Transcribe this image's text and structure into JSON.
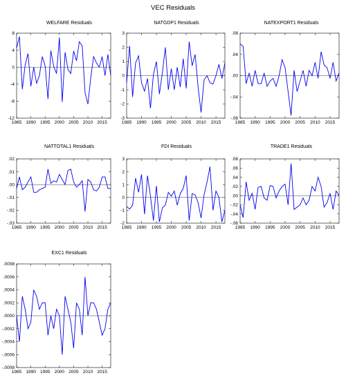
{
  "figure_title": "VEC Residuals",
  "colors": {
    "line": "#0000ee",
    "zero": "#000000",
    "axis": "#000000"
  },
  "chart_data": [
    {
      "type": "line",
      "title": "WELFARE Residuals",
      "x": [
        1985,
        1986,
        1987,
        1988,
        1989,
        1990,
        1991,
        1992,
        1993,
        1994,
        1995,
        1996,
        1997,
        1998,
        1999,
        2000,
        2001,
        2002,
        2003,
        2004,
        2005,
        2006,
        2007,
        2008,
        2009,
        2010,
        2011,
        2012,
        2013,
        2014,
        2015,
        2016,
        2017,
        2018
      ],
      "values": [
        4.5,
        7.2,
        -5.2,
        0.5,
        3.2,
        -4.5,
        0.0,
        -3.8,
        -2.0,
        2.5,
        0.3,
        -7.5,
        3.9,
        0.2,
        -1.5,
        7.0,
        -8.2,
        3.5,
        -0.5,
        -1.5,
        3.8,
        1.5,
        6.0,
        5.0,
        -6.0,
        -8.7,
        -2.5,
        2.5,
        1.0,
        0.0,
        2.5,
        -2.0,
        3.0,
        -2.0
      ],
      "ylim": [
        -12,
        8
      ],
      "yticks": [
        8,
        4,
        0,
        -4,
        -8,
        -12
      ],
      "ytick_labels": [
        "8",
        "4",
        "0",
        "-4",
        "-8",
        "-12"
      ],
      "xticks": [
        1985,
        1990,
        1995,
        2000,
        2005,
        2010,
        2015
      ],
      "xlim": [
        1985,
        2018
      ]
    },
    {
      "type": "line",
      "title": "NATGDP1 Residuals",
      "x": [
        1985,
        1986,
        1987,
        1988,
        1989,
        1990,
        1991,
        1992,
        1993,
        1994,
        1995,
        1996,
        1997,
        1998,
        1999,
        2000,
        2001,
        2002,
        2003,
        2004,
        2005,
        2006,
        2007,
        2008,
        2009,
        2010,
        2011,
        2012,
        2013,
        2014,
        2015,
        2016,
        2017,
        2018
      ],
      "values": [
        -0.5,
        2.1,
        -1.5,
        0.9,
        1.4,
        -0.5,
        -1.1,
        -0.2,
        -2.3,
        0.1,
        1.0,
        -1.3,
        0.2,
        2.0,
        -1.0,
        0.5,
        -1.0,
        0.6,
        -0.8,
        1.2,
        -0.9,
        2.4,
        0.7,
        1.5,
        -0.8,
        -2.6,
        -0.3,
        0.0,
        -0.5,
        -0.6,
        0.0,
        0.8,
        -0.2,
        0.9
      ],
      "ylim": [
        -3,
        3
      ],
      "yticks": [
        3,
        2,
        1,
        0,
        -1,
        -2,
        -3
      ],
      "ytick_labels": [
        "3",
        "2",
        "1",
        "0",
        "-1",
        "-2",
        "-3"
      ],
      "xticks": [
        1985,
        1990,
        1995,
        2000,
        2005,
        2010,
        2015
      ],
      "xlim": [
        1985,
        2018
      ]
    },
    {
      "type": "line",
      "title": "NATEXPORT1 Residuals",
      "x": [
        1985,
        1986,
        1987,
        1988,
        1989,
        1990,
        1991,
        1992,
        1993,
        1994,
        1995,
        1996,
        1997,
        1998,
        1999,
        2000,
        2001,
        2002,
        2003,
        2004,
        2005,
        2006,
        2007,
        2008,
        2009,
        2010,
        2011,
        2012,
        2013,
        2014,
        2015,
        2016,
        2017,
        2018
      ],
      "values": [
        0.06,
        0.055,
        -0.015,
        0.005,
        -0.02,
        0.01,
        -0.015,
        -0.015,
        0.005,
        -0.02,
        -0.01,
        -0.005,
        -0.02,
        0.0,
        0.03,
        0.015,
        -0.03,
        -0.075,
        0.01,
        -0.03,
        -0.01,
        0.01,
        -0.02,
        0.01,
        0.0,
        0.025,
        -0.005,
        0.045,
        0.02,
        0.015,
        -0.005,
        0.025,
        -0.01,
        0.005
      ],
      "ylim": [
        -0.08,
        0.08
      ],
      "yticks": [
        0.08,
        0.04,
        0.0,
        -0.04,
        -0.08
      ],
      "ytick_labels": [
        ".08",
        ".04",
        ".00",
        "-.04",
        "-.08"
      ],
      "xticks": [
        1985,
        1990,
        1995,
        2000,
        2005,
        2010,
        2015
      ],
      "xlim": [
        1985,
        2018
      ]
    },
    {
      "type": "line",
      "title": "NATTOTAL1 Residuals",
      "x": [
        1985,
        1986,
        1987,
        1988,
        1989,
        1990,
        1991,
        1992,
        1993,
        1994,
        1995,
        1996,
        1997,
        1998,
        1999,
        2000,
        2001,
        2002,
        2003,
        2004,
        2005,
        2006,
        2007,
        2008,
        2009,
        2010,
        2011,
        2012,
        2013,
        2014,
        2015,
        2016,
        2017,
        2018
      ],
      "values": [
        -0.003,
        0.006,
        -0.004,
        -0.002,
        0.002,
        0.006,
        -0.006,
        -0.006,
        -0.004,
        -0.003,
        -0.002,
        0.012,
        0.001,
        0.003,
        0.002,
        0.008,
        0.004,
        0.0,
        0.011,
        0.012,
        0.002,
        -0.002,
        0.0,
        0.003,
        -0.021,
        0.004,
        0.002,
        -0.004,
        -0.005,
        -0.002,
        0.006,
        0.006,
        -0.003,
        -0.003
      ],
      "ylim": [
        -0.03,
        0.02
      ],
      "yticks": [
        0.02,
        0.01,
        0.0,
        -0.01,
        -0.02,
        -0.03
      ],
      "ytick_labels": [
        ".02",
        ".01",
        ".00",
        "-.01",
        "-.02",
        "-.03"
      ],
      "xticks": [
        1985,
        1990,
        1995,
        2000,
        2005,
        2010,
        2015
      ],
      "xlim": [
        1985,
        2018
      ]
    },
    {
      "type": "line",
      "title": "FDI Residuals",
      "x": [
        1985,
        1986,
        1987,
        1988,
        1989,
        1990,
        1991,
        1992,
        1993,
        1994,
        1995,
        1996,
        1997,
        1998,
        1999,
        2000,
        2001,
        2002,
        2003,
        2004,
        2005,
        2006,
        2007,
        2008,
        2009,
        2010,
        2011,
        2012,
        2013,
        2014,
        2015,
        2016,
        2017,
        2018
      ],
      "values": [
        -0.7,
        -0.9,
        -0.6,
        1.5,
        0.4,
        1.8,
        -1.3,
        1.7,
        0.1,
        -1.8,
        0.9,
        -1.9,
        -0.8,
        -0.6,
        0.4,
        0.1,
        0.5,
        -0.6,
        0.3,
        0.7,
        1.7,
        -1.8,
        0.3,
        0.2,
        -0.4,
        -1.6,
        0.2,
        1.2,
        2.4,
        -1.0,
        0.5,
        0.0,
        -1.9,
        -1.0
      ],
      "ylim": [
        -2,
        3
      ],
      "yticks": [
        3,
        2,
        1,
        0,
        -1,
        -2
      ],
      "ytick_labels": [
        "3",
        "2",
        "1",
        "0",
        "-1",
        "-2"
      ],
      "xticks": [
        1985,
        1990,
        1995,
        2000,
        2005,
        2010,
        2015
      ],
      "xlim": [
        1985,
        2018
      ]
    },
    {
      "type": "line",
      "title": "TRADE1 Residuals",
      "x": [
        1985,
        1986,
        1987,
        1988,
        1989,
        1990,
        1991,
        1992,
        1993,
        1994,
        1995,
        1996,
        1997,
        1998,
        1999,
        2000,
        2001,
        2002,
        2003,
        2004,
        2005,
        2006,
        2007,
        2008,
        2009,
        2010,
        2011,
        2012,
        2013,
        2014,
        2015,
        2016,
        2017,
        2018
      ],
      "values": [
        -0.02,
        -0.048,
        0.03,
        -0.01,
        0.005,
        -0.03,
        0.018,
        0.02,
        -0.005,
        -0.01,
        0.022,
        0.02,
        -0.005,
        0.01,
        0.02,
        0.025,
        -0.02,
        0.07,
        -0.03,
        -0.025,
        -0.02,
        -0.005,
        -0.02,
        -0.01,
        0.02,
        0.01,
        0.04,
        0.02,
        -0.025,
        -0.015,
        0.005,
        -0.03,
        0.01,
        0.0
      ],
      "ylim": [
        -0.06,
        0.08
      ],
      "yticks": [
        0.08,
        0.06,
        0.04,
        0.02,
        0.0,
        -0.02,
        -0.04,
        -0.06
      ],
      "ytick_labels": [
        ".08",
        ".06",
        ".04",
        ".02",
        ".00",
        "-.02",
        "-.04",
        "-.06"
      ],
      "xticks": [
        1985,
        1990,
        1995,
        2000,
        2005,
        2010,
        2015
      ],
      "xlim": [
        1985,
        2018
      ]
    },
    {
      "type": "line",
      "title": "EXC1 Residuals",
      "x": [
        1985,
        1986,
        1987,
        1988,
        1989,
        1990,
        1991,
        1992,
        1993,
        1994,
        1995,
        1996,
        1997,
        1998,
        1999,
        2000,
        2001,
        2002,
        2003,
        2004,
        2005,
        2006,
        2007,
        2008,
        2009,
        2010,
        2011,
        2012,
        2013,
        2014,
        2015,
        2016,
        2017,
        2018
      ],
      "values": [
        0.0,
        -0.0004,
        0.0003,
        0.0001,
        -0.0002,
        -0.0001,
        0.0004,
        0.0003,
        0.0001,
        0.0002,
        0.0002,
        -0.0003,
        0.0,
        -0.0002,
        0.0001,
        0.0,
        -0.0006,
        0.0003,
        0.0001,
        -0.0001,
        -0.0005,
        0.0002,
        0.0001,
        -0.0003,
        0.0006,
        0.0,
        0.0002,
        0.0002,
        0.0001,
        -0.0001,
        -0.0003,
        -0.0002,
        0.0001,
        0.0002
      ],
      "ylim": [
        -0.0008,
        0.0008
      ],
      "yticks": [
        0.0008,
        0.0006,
        0.0004,
        0.0002,
        0.0,
        -0.0002,
        -0.0004,
        -0.0006,
        -0.0008
      ],
      "ytick_labels": [
        ".0008",
        ".0006",
        ".0004",
        ".0002",
        ".0000",
        "-.0002",
        "-.0004",
        "-.0006",
        "-.0008"
      ],
      "xticks": [
        1985,
        1990,
        1995,
        2000,
        2005,
        2010,
        2015
      ],
      "xlim": [
        1985,
        2018
      ]
    }
  ]
}
